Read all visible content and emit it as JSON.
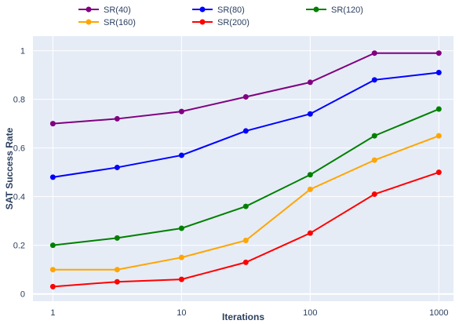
{
  "chart_data": {
    "type": "line",
    "x_scale": "log",
    "x": [
      1,
      3.16,
      10,
      31.6,
      100,
      316,
      1000
    ],
    "xticks": [
      "1",
      "10",
      "100",
      "1000"
    ],
    "yticks": [
      "0",
      "0.2",
      "0.4",
      "0.6",
      "0.8",
      "1"
    ],
    "xlabel": "Iterations",
    "ylabel": "SAT Success Rate",
    "xlim": [
      0.7,
      1300
    ],
    "ylim": [
      -0.03,
      1.06
    ],
    "grid": true,
    "legend_position": "top",
    "plot_background": "#e5ecf6",
    "series": [
      {
        "name": "SR(40)",
        "color": "#800080",
        "values": [
          0.7,
          0.72,
          0.75,
          0.81,
          0.87,
          0.99,
          0.99
        ]
      },
      {
        "name": "SR(80)",
        "color": "#0000ff",
        "values": [
          0.48,
          0.52,
          0.57,
          0.67,
          0.74,
          0.88,
          0.91
        ]
      },
      {
        "name": "SR(120)",
        "color": "#008000",
        "values": [
          0.2,
          0.23,
          0.27,
          0.36,
          0.49,
          0.65,
          0.76
        ]
      },
      {
        "name": "SR(160)",
        "color": "#ffa500",
        "values": [
          0.1,
          0.1,
          0.15,
          0.22,
          0.43,
          0.55,
          0.65
        ]
      },
      {
        "name": "SR(200)",
        "color": "#ff0000",
        "values": [
          0.03,
          0.05,
          0.06,
          0.13,
          0.25,
          0.41,
          0.5
        ]
      }
    ]
  }
}
